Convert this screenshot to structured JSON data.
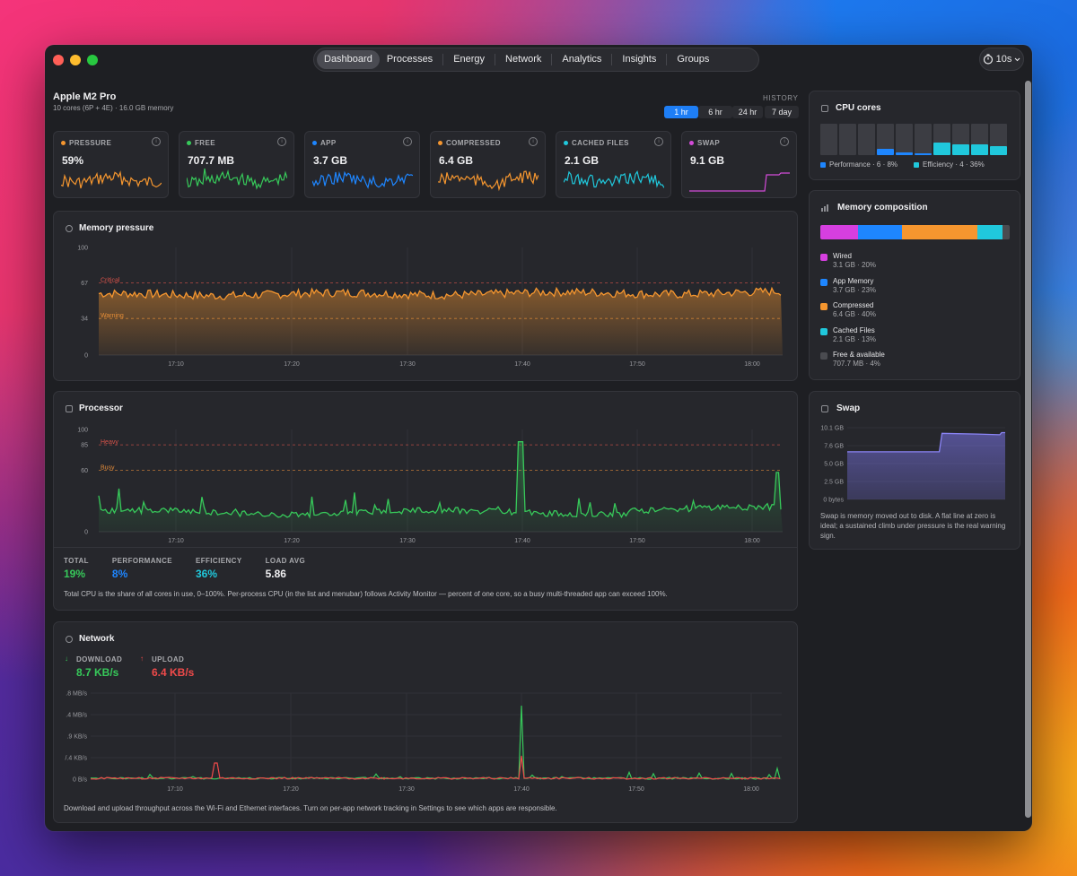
{
  "tabs": [
    "Dashboard",
    "Processes",
    "Energy",
    "Network",
    "Analytics",
    "Insights",
    "Groups"
  ],
  "refresh": {
    "label": "10s"
  },
  "header": {
    "title": "Apple M2 Pro",
    "subtitle": "10 cores (6P + 4E) · 16.0 GB memory"
  },
  "history": {
    "label": "HISTORY",
    "ranges": [
      "1 hr",
      "6 hr",
      "24 hr",
      "7 day"
    ],
    "selected": "1 hr"
  },
  "stats": [
    {
      "label": "PRESSURE",
      "value": "59%",
      "color": "#f5962f"
    },
    {
      "label": "FREE",
      "value": "707.7 MB",
      "color": "#37c95a"
    },
    {
      "label": "APP",
      "value": "3.7 GB",
      "color": "#1e86ff"
    },
    {
      "label": "COMPRESSED",
      "value": "6.4 GB",
      "color": "#f5962f"
    },
    {
      "label": "CACHED FILES",
      "value": "2.1 GB",
      "color": "#20c8dc"
    },
    {
      "label": "SWAP",
      "value": "9.1 GB",
      "color": "#d34bd8"
    }
  ],
  "memory_pressure": {
    "title": "Memory pressure",
    "critical_label": "Critical",
    "warning_label": "Warning"
  },
  "processor": {
    "title": "Processor",
    "heavy_label": "Heavy",
    "busy_label": "Busy",
    "stats": [
      {
        "label": "TOTAL",
        "value": "19%",
        "color": "#37c95a"
      },
      {
        "label": "PERFORMANCE",
        "value": "8%",
        "color": "#1e86ff"
      },
      {
        "label": "EFFICIENCY",
        "value": "36%",
        "color": "#20c8dc"
      },
      {
        "label": "LOAD AVG",
        "value": "5.86",
        "color": "#f0f0f2"
      }
    ],
    "note": "Total CPU is the share of all cores in use, 0–100%. Per-process CPU (in the list and menubar) follows Activity Monitor — percent of one core, so a busy multi-threaded app can exceed 100%."
  },
  "network": {
    "title": "Network",
    "download_label": "DOWNLOAD",
    "download_value": "8.7 KB/s",
    "upload_label": "UPLOAD",
    "upload_value": "6.4 KB/s",
    "note": "Download and upload throughput across the Wi-Fi and Ethernet interfaces. Turn on per-app network tracking in Settings to see which apps are responsible."
  },
  "cpu_cores": {
    "title": "CPU cores",
    "performance_legend": "Performance · 6 · 8%",
    "efficiency_legend": "Efficiency · 4 · 36%",
    "cores": [
      {
        "type": "P",
        "load": 0.0
      },
      {
        "type": "P",
        "load": 0.0
      },
      {
        "type": "P",
        "load": 0.0
      },
      {
        "type": "P",
        "load": 0.2
      },
      {
        "type": "P",
        "load": 0.1
      },
      {
        "type": "P",
        "load": 0.05
      },
      {
        "type": "E",
        "load": 0.4
      },
      {
        "type": "E",
        "load": 0.35
      },
      {
        "type": "E",
        "load": 0.35
      },
      {
        "type": "E",
        "load": 0.3
      }
    ]
  },
  "memory_composition": {
    "title": "Memory composition",
    "segments": [
      {
        "name": "Wired",
        "detail": "3.1 GB · 20%",
        "color": "#d63fe0",
        "pct": 20
      },
      {
        "name": "App Memory",
        "detail": "3.7 GB · 23%",
        "color": "#1e86ff",
        "pct": 23
      },
      {
        "name": "Compressed",
        "detail": "6.4 GB · 40%",
        "color": "#f5962f",
        "pct": 40
      },
      {
        "name": "Cached Files",
        "detail": "2.1 GB · 13%",
        "color": "#20c8dc",
        "pct": 13
      },
      {
        "name": "Free & available",
        "detail": "707.7 MB · 4%",
        "color": "#4a4b50",
        "pct": 4
      }
    ]
  },
  "swap": {
    "title": "Swap",
    "note": "Swap is memory moved out to disk. A flat line at zero is ideal; a sustained climb under pressure is the real warning sign."
  },
  "chart_data": [
    {
      "type": "area",
      "title": "Memory pressure",
      "x_ticks": [
        "17:10",
        "17:20",
        "17:30",
        "17:40",
        "17:50",
        "18:00"
      ],
      "y_ticks": [
        "100",
        "67",
        "34",
        "0"
      ],
      "ylim": [
        0,
        100
      ],
      "thresholds": [
        {
          "name": "Critical",
          "value": 67
        },
        {
          "name": "Warning",
          "value": 34
        }
      ],
      "series": [
        {
          "color": "#f5962f",
          "mean": 56,
          "amplitude": 4
        }
      ]
    },
    {
      "type": "area",
      "title": "Processor",
      "x_ticks": [
        "17:10",
        "17:20",
        "17:30",
        "17:40",
        "17:50",
        "18:00"
      ],
      "y_ticks": [
        "100",
        "85",
        "60",
        "0"
      ],
      "ylim": [
        0,
        100
      ],
      "thresholds": [
        {
          "name": "Heavy",
          "value": 85
        },
        {
          "name": "Busy",
          "value": 60
        }
      ],
      "series": [
        {
          "color": "#37c95a",
          "mean": 16,
          "amplitude": 6,
          "peak": 88
        }
      ]
    },
    {
      "type": "line",
      "title": "Network",
      "x_ticks": [
        "17:10",
        "17:20",
        "17:30",
        "17:40",
        "17:50",
        "18:00"
      ],
      "y_ticks": [
        ".8 MB/s",
        ".4 MB/s",
        ".9 KB/s",
        "/.4 KB/s",
        "0 B/s"
      ],
      "series": [
        {
          "name": "Download",
          "color": "#37c95a"
        },
        {
          "name": "Upload",
          "color": "#f04a4a"
        }
      ]
    },
    {
      "type": "area",
      "title": "Swap",
      "y_ticks": [
        "10.1 GB",
        "7.6 GB",
        "5.0 GB",
        "2.5 GB",
        "0 bytes"
      ],
      "ylim": [
        0,
        10.1
      ],
      "series": [
        {
          "color": "#7a74e8",
          "start": 6.7,
          "end": 9.1
        }
      ]
    }
  ]
}
